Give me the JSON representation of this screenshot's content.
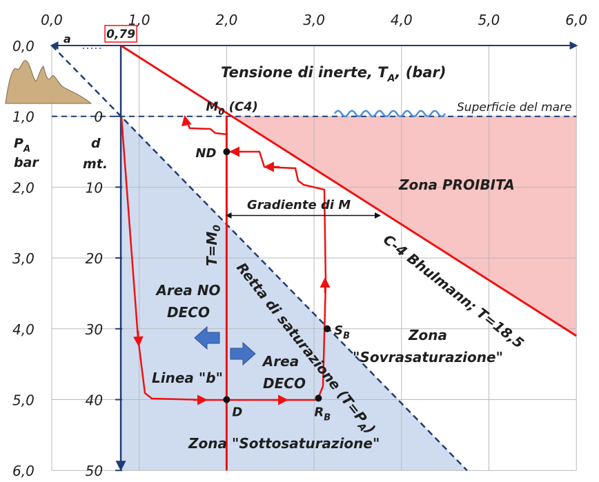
{
  "chart_data": {
    "type": "diagram",
    "top_axis": {
      "title": "Tensione di inerte, T",
      "title_sub": "A",
      "title_unit": ", (bar)",
      "range": [
        0,
        6
      ],
      "ticks": [
        "0,0",
        "1,0",
        "2,0",
        "3,0",
        "4,0",
        "5,0",
        "6,0"
      ],
      "marker_value": 0.79,
      "marker_label": "0,79",
      "a_label": "a"
    },
    "left_axis": {
      "label_top": "P",
      "label_sub": "A",
      "label_bottom": "bar",
      "range": [
        0,
        6
      ],
      "ticks": [
        "0,0",
        "1,0",
        "2,0",
        "3,0",
        "4,0",
        "5,0",
        "6,0"
      ]
    },
    "depth_axis": {
      "label_top": "d",
      "label_bottom": "mt.",
      "range_m": [
        0,
        50
      ],
      "ticks": [
        "0",
        "10",
        "20",
        "30",
        "40",
        "50"
      ]
    },
    "lines": {
      "c4_limit": {
        "points": [
          [
            0.79,
            0
          ],
          [
            6.0,
            4.1
          ]
        ],
        "label": "C-4 Bhulmann; T=18,5"
      },
      "saturation": {
        "points": [
          [
            0,
            0
          ],
          [
            4.75,
            6.0
          ]
        ],
        "label": "Retta di saturazione (T=P",
        "label_sub": "A",
        "label_end": ")"
      },
      "t_equals_m0": {
        "x": 2.0,
        "label": "T=M",
        "label_sub": "0"
      },
      "depth_axis_line": {
        "x": 0.79
      }
    },
    "surface": {
      "pressure_bar": 1.0,
      "label": "Superficie del mare"
    },
    "points": [
      {
        "name": "M0",
        "label": "M",
        "sub": "0",
        "suffix": " (C4)",
        "x": 2.0,
        "y": 1.0
      },
      {
        "name": "ND",
        "label": "ND",
        "x": 2.0,
        "y": 1.5
      },
      {
        "name": "D",
        "label": "D",
        "x": 2.0,
        "y": 5.0
      },
      {
        "name": "RB",
        "label": "R",
        "sub": "B",
        "x": 3.05,
        "y": 4.98
      },
      {
        "name": "SB",
        "label": "S",
        "sub": "B",
        "x": 3.15,
        "y": 4.0
      }
    ],
    "zones": {
      "forbidden": "Zona  PROIBITA",
      "supersat_line1": "Zona",
      "supersat_line2": "\"Sovrasaturazione\"",
      "undersat": "Zona \"Sottosaturazione\"",
      "no_deco_line1": "Area NO",
      "no_deco_line2": "DECO",
      "deco_line1": "Area",
      "deco_line2": "DECO",
      "linea_b": "Linea \"b\""
    },
    "gradient": {
      "label": "Gradiente di M",
      "from_x": 2.0,
      "to_x": 3.75,
      "y": 2.4
    },
    "colors": {
      "red": "#ee1111",
      "navy": "#1f3b73",
      "forbidden_fill": "#f8c4c4",
      "undersat_fill": "#cfdcf0",
      "grid": "#b9b9b9",
      "wave": "#4a90d9",
      "sediment": "#cdae80",
      "deco_arrow": "#4472c4"
    }
  }
}
